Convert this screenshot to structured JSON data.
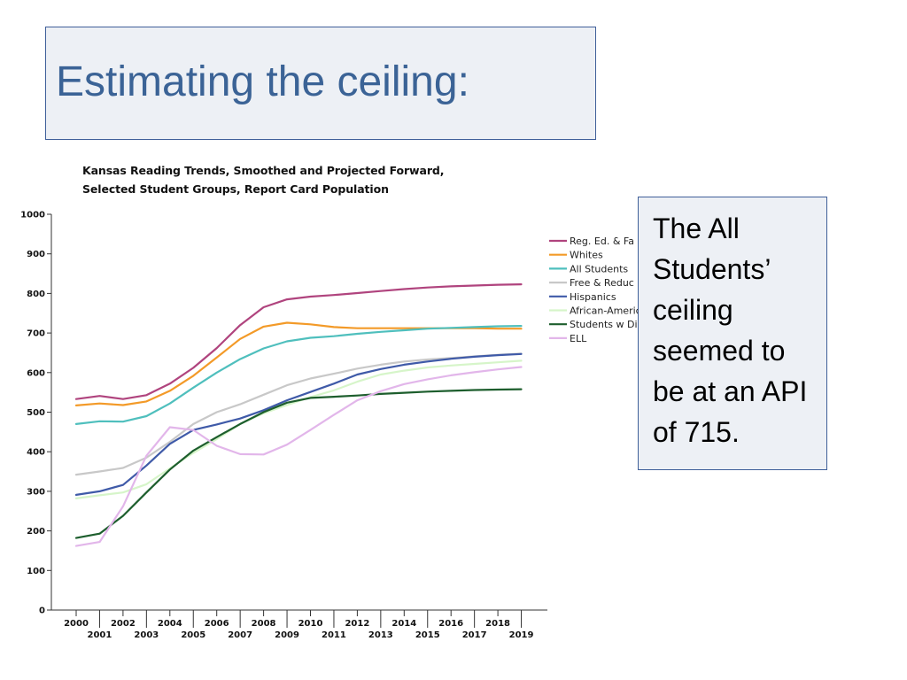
{
  "slide": {
    "title": "Estimating the ceiling:",
    "note": "The All Students’ ceiling seemed to be at an API of 715."
  },
  "chart_data": {
    "type": "line",
    "title_line1": "Kansas Reading Trends, Smoothed and Projected Forward,",
    "title_line2": "Selected Student Groups, Report Card Population",
    "xlabel": "",
    "ylabel": "",
    "ylim": [
      0,
      1000
    ],
    "yticks": [
      0,
      100,
      200,
      300,
      400,
      500,
      600,
      700,
      800,
      900,
      1000
    ],
    "x": [
      2000,
      2001,
      2002,
      2003,
      2004,
      2005,
      2006,
      2007,
      2008,
      2009,
      2010,
      2011,
      2012,
      2013,
      2014,
      2015,
      2016,
      2017,
      2018,
      2019
    ],
    "grid": false,
    "legend_position": "right",
    "series": [
      {
        "name": "Reg. Ed. & Fa",
        "color": "#b0447e",
        "values": [
          533,
          541,
          533,
          543,
          572,
          612,
          662,
          720,
          765,
          785,
          792,
          796,
          801,
          806,
          811,
          815,
          818,
          820,
          822,
          823
        ]
      },
      {
        "name": "Whites",
        "color": "#f39a28",
        "values": [
          517,
          522,
          518,
          527,
          554,
          592,
          638,
          685,
          716,
          726,
          722,
          715,
          712,
          712,
          712,
          712,
          712,
          712,
          711,
          711
        ]
      },
      {
        "name": "All Students",
        "color": "#4fbfbd",
        "values": [
          470,
          477,
          476,
          490,
          522,
          562,
          600,
          634,
          661,
          679,
          688,
          692,
          698,
          703,
          707,
          711,
          713,
          715,
          717,
          718
        ]
      },
      {
        "name": "Free & Reduc",
        "color": "#c8c8c8",
        "values": [
          342,
          350,
          359,
          385,
          425,
          470,
          500,
          520,
          544,
          568,
          585,
          597,
          610,
          620,
          628,
          633,
          637,
          641,
          645,
          648
        ]
      },
      {
        "name": "Hispanics",
        "color": "#3f5aa8",
        "values": [
          291,
          300,
          316,
          365,
          420,
          455,
          469,
          484,
          505,
          530,
          551,
          572,
          595,
          609,
          620,
          628,
          635,
          640,
          644,
          647
        ]
      },
      {
        "name": "African-Americ",
        "color": "#d6f5c9",
        "values": [
          282,
          290,
          297,
          318,
          358,
          397,
          432,
          470,
          497,
          518,
          538,
          555,
          577,
          595,
          605,
          613,
          618,
          622,
          626,
          630
        ]
      },
      {
        "name": "Students w Di",
        "color": "#1d5e2d",
        "values": [
          182,
          193,
          238,
          297,
          355,
          403,
          437,
          470,
          500,
          524,
          536,
          539,
          542,
          546,
          549,
          552,
          554,
          556,
          557,
          558
        ]
      },
      {
        "name": "ELL",
        "color": "#e2b6ea",
        "values": [
          162,
          172,
          262,
          390,
          462,
          455,
          415,
          394,
          393,
          418,
          455,
          493,
          530,
          553,
          571,
          583,
          593,
          601,
          608,
          614
        ]
      }
    ]
  }
}
